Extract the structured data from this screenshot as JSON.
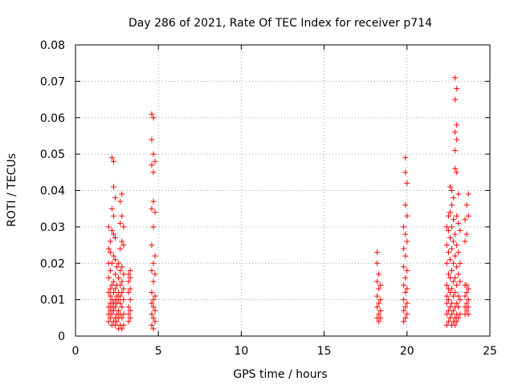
{
  "chart_data": {
    "type": "scatter",
    "title": "Day 286 of 2021, Rate Of TEC Index for receiver p714",
    "xlabel": "GPS time / hours",
    "ylabel": "ROTI / TECUs",
    "xlim": [
      0,
      25
    ],
    "ylim": [
      0,
      0.08
    ],
    "xticks": [
      0,
      5,
      10,
      15,
      20,
      25
    ],
    "xtick_labels": [
      "0",
      "5",
      "10",
      "15",
      "20",
      "25"
    ],
    "yticks": [
      0,
      0.01,
      0.02,
      0.03,
      0.04,
      0.05,
      0.06,
      0.07,
      0.08
    ],
    "ytick_labels": [
      "0",
      "0.01",
      "0.02",
      "0.03",
      "0.04",
      "0.05",
      "0.06",
      "0.07",
      "0.08"
    ],
    "grid": true,
    "marker": "+",
    "color": "#ff0000",
    "series": [
      {
        "name": "ROTI",
        "points": [
          [
            2.0,
            0.004
          ],
          [
            2.0,
            0.006
          ],
          [
            2.0,
            0.008
          ],
          [
            2.0,
            0.012
          ],
          [
            2.0,
            0.016
          ],
          [
            2.0,
            0.02
          ],
          [
            2.0,
            0.024
          ],
          [
            2.0,
            0.03
          ],
          [
            2.1,
            0.005
          ],
          [
            2.1,
            0.007
          ],
          [
            2.1,
            0.009
          ],
          [
            2.1,
            0.011
          ],
          [
            2.1,
            0.013
          ],
          [
            2.1,
            0.018
          ],
          [
            2.1,
            0.023
          ],
          [
            2.1,
            0.026
          ],
          [
            2.2,
            0.003
          ],
          [
            2.2,
            0.006
          ],
          [
            2.2,
            0.008
          ],
          [
            2.2,
            0.01
          ],
          [
            2.2,
            0.014
          ],
          [
            2.2,
            0.02
          ],
          [
            2.2,
            0.029
          ],
          [
            2.2,
            0.035
          ],
          [
            2.2,
            0.049
          ],
          [
            2.3,
            0.004
          ],
          [
            2.3,
            0.007
          ],
          [
            2.3,
            0.009
          ],
          [
            2.3,
            0.012
          ],
          [
            2.3,
            0.015
          ],
          [
            2.3,
            0.022
          ],
          [
            2.3,
            0.028
          ],
          [
            2.3,
            0.033
          ],
          [
            2.3,
            0.041
          ],
          [
            2.3,
            0.048
          ],
          [
            2.4,
            0.003
          ],
          [
            2.4,
            0.005
          ],
          [
            2.4,
            0.008
          ],
          [
            2.4,
            0.01
          ],
          [
            2.4,
            0.013
          ],
          [
            2.4,
            0.017
          ],
          [
            2.4,
            0.021
          ],
          [
            2.4,
            0.027
          ],
          [
            2.4,
            0.038
          ],
          [
            2.5,
            0.004
          ],
          [
            2.5,
            0.006
          ],
          [
            2.5,
            0.009
          ],
          [
            2.5,
            0.011
          ],
          [
            2.5,
            0.014
          ],
          [
            2.5,
            0.019
          ],
          [
            2.6,
            0.002
          ],
          [
            2.6,
            0.005
          ],
          [
            2.6,
            0.007
          ],
          [
            2.6,
            0.01
          ],
          [
            2.6,
            0.012
          ],
          [
            2.6,
            0.016
          ],
          [
            2.6,
            0.02
          ],
          [
            2.7,
            0.003
          ],
          [
            2.7,
            0.006
          ],
          [
            2.7,
            0.009
          ],
          [
            2.7,
            0.011
          ],
          [
            2.7,
            0.014
          ],
          [
            2.7,
            0.018
          ],
          [
            2.7,
            0.024
          ],
          [
            2.7,
            0.031
          ],
          [
            2.7,
            0.037
          ],
          [
            2.8,
            0.002
          ],
          [
            2.8,
            0.005
          ],
          [
            2.8,
            0.008
          ],
          [
            2.8,
            0.012
          ],
          [
            2.8,
            0.015
          ],
          [
            2.8,
            0.019
          ],
          [
            2.8,
            0.026
          ],
          [
            2.8,
            0.033
          ],
          [
            2.8,
            0.039
          ],
          [
            2.9,
            0.003
          ],
          [
            2.9,
            0.006
          ],
          [
            2.9,
            0.01
          ],
          [
            2.9,
            0.013
          ],
          [
            2.9,
            0.017
          ],
          [
            2.9,
            0.025
          ],
          [
            2.9,
            0.03
          ],
          [
            3.2,
            0.004
          ],
          [
            3.2,
            0.006
          ],
          [
            3.2,
            0.008
          ],
          [
            3.2,
            0.012
          ],
          [
            3.2,
            0.015
          ],
          [
            3.2,
            0.017
          ],
          [
            3.3,
            0.005
          ],
          [
            3.3,
            0.007
          ],
          [
            3.3,
            0.01
          ],
          [
            3.3,
            0.013
          ],
          [
            3.3,
            0.016
          ],
          [
            3.3,
            0.018
          ],
          [
            4.6,
            0.003
          ],
          [
            4.6,
            0.006
          ],
          [
            4.6,
            0.009
          ],
          [
            4.6,
            0.012
          ],
          [
            4.6,
            0.018
          ],
          [
            4.6,
            0.025
          ],
          [
            4.6,
            0.035
          ],
          [
            4.6,
            0.047
          ],
          [
            4.6,
            0.054
          ],
          [
            4.6,
            0.061
          ],
          [
            4.7,
            0.002
          ],
          [
            4.7,
            0.005
          ],
          [
            4.7,
            0.008
          ],
          [
            4.7,
            0.01
          ],
          [
            4.7,
            0.015
          ],
          [
            4.7,
            0.02
          ],
          [
            4.7,
            0.03
          ],
          [
            4.7,
            0.037
          ],
          [
            4.7,
            0.045
          ],
          [
            4.7,
            0.05
          ],
          [
            4.7,
            0.06
          ],
          [
            4.8,
            0.004
          ],
          [
            4.8,
            0.007
          ],
          [
            4.8,
            0.011
          ],
          [
            4.8,
            0.017
          ],
          [
            4.8,
            0.022
          ],
          [
            4.8,
            0.034
          ],
          [
            4.8,
            0.048
          ],
          [
            18.2,
            0.005
          ],
          [
            18.2,
            0.008
          ],
          [
            18.2,
            0.011
          ],
          [
            18.2,
            0.015
          ],
          [
            18.2,
            0.02
          ],
          [
            18.2,
            0.023
          ],
          [
            18.3,
            0.004
          ],
          [
            18.3,
            0.006
          ],
          [
            18.3,
            0.009
          ],
          [
            18.3,
            0.013
          ],
          [
            18.3,
            0.017
          ],
          [
            18.4,
            0.005
          ],
          [
            18.4,
            0.007
          ],
          [
            18.4,
            0.01
          ],
          [
            18.4,
            0.014
          ],
          [
            19.8,
            0.004
          ],
          [
            19.8,
            0.007
          ],
          [
            19.8,
            0.01
          ],
          [
            19.8,
            0.014
          ],
          [
            19.8,
            0.019
          ],
          [
            19.8,
            0.024
          ],
          [
            19.8,
            0.03
          ],
          [
            19.9,
            0.005
          ],
          [
            19.9,
            0.008
          ],
          [
            19.9,
            0.012
          ],
          [
            19.9,
            0.016
          ],
          [
            19.9,
            0.022
          ],
          [
            19.9,
            0.028
          ],
          [
            19.9,
            0.036
          ],
          [
            19.9,
            0.045
          ],
          [
            19.9,
            0.049
          ],
          [
            20.0,
            0.006
          ],
          [
            20.0,
            0.009
          ],
          [
            20.0,
            0.013
          ],
          [
            20.0,
            0.018
          ],
          [
            20.0,
            0.026
          ],
          [
            20.0,
            0.033
          ],
          [
            20.0,
            0.042
          ],
          [
            22.4,
            0.003
          ],
          [
            22.4,
            0.006
          ],
          [
            22.4,
            0.009
          ],
          [
            22.4,
            0.011
          ],
          [
            22.4,
            0.014
          ],
          [
            22.4,
            0.02
          ],
          [
            22.4,
            0.025
          ],
          [
            22.4,
            0.03
          ],
          [
            22.5,
            0.004
          ],
          [
            22.5,
            0.007
          ],
          [
            22.5,
            0.01
          ],
          [
            22.5,
            0.013
          ],
          [
            22.5,
            0.017
          ],
          [
            22.5,
            0.023
          ],
          [
            22.5,
            0.029
          ],
          [
            22.5,
            0.033
          ],
          [
            22.6,
            0.005
          ],
          [
            22.6,
            0.008
          ],
          [
            22.6,
            0.012
          ],
          [
            22.6,
            0.016
          ],
          [
            22.6,
            0.021
          ],
          [
            22.6,
            0.027
          ],
          [
            22.6,
            0.034
          ],
          [
            22.6,
            0.041
          ],
          [
            22.7,
            0.003
          ],
          [
            22.7,
            0.006
          ],
          [
            22.7,
            0.009
          ],
          [
            22.7,
            0.013
          ],
          [
            22.7,
            0.018
          ],
          [
            22.7,
            0.024
          ],
          [
            22.7,
            0.03
          ],
          [
            22.7,
            0.036
          ],
          [
            22.7,
            0.04
          ],
          [
            22.8,
            0.004
          ],
          [
            22.8,
            0.007
          ],
          [
            22.8,
            0.011
          ],
          [
            22.8,
            0.015
          ],
          [
            22.8,
            0.02
          ],
          [
            22.8,
            0.026
          ],
          [
            22.8,
            0.032
          ],
          [
            22.8,
            0.038
          ],
          [
            22.9,
            0.003
          ],
          [
            22.9,
            0.005
          ],
          [
            22.9,
            0.008
          ],
          [
            22.9,
            0.012
          ],
          [
            22.9,
            0.016
          ],
          [
            22.9,
            0.022
          ],
          [
            22.9,
            0.028
          ],
          [
            22.9,
            0.046
          ],
          [
            22.9,
            0.051
          ],
          [
            22.9,
            0.056
          ],
          [
            22.9,
            0.065
          ],
          [
            22.9,
            0.071
          ],
          [
            23.0,
            0.004
          ],
          [
            23.0,
            0.006
          ],
          [
            23.0,
            0.009
          ],
          [
            23.0,
            0.014
          ],
          [
            23.0,
            0.019
          ],
          [
            23.0,
            0.025
          ],
          [
            23.0,
            0.033
          ],
          [
            23.0,
            0.045
          ],
          [
            23.0,
            0.054
          ],
          [
            23.0,
            0.058
          ],
          [
            23.0,
            0.068
          ],
          [
            23.1,
            0.005
          ],
          [
            23.1,
            0.008
          ],
          [
            23.1,
            0.011
          ],
          [
            23.1,
            0.017
          ],
          [
            23.1,
            0.023
          ],
          [
            23.1,
            0.031
          ],
          [
            23.1,
            0.039
          ],
          [
            23.2,
            0.006
          ],
          [
            23.2,
            0.01
          ],
          [
            23.2,
            0.015
          ],
          [
            23.2,
            0.02
          ],
          [
            23.2,
            0.029
          ],
          [
            23.5,
            0.006
          ],
          [
            23.5,
            0.008
          ],
          [
            23.5,
            0.011
          ],
          [
            23.5,
            0.014
          ],
          [
            23.5,
            0.026
          ],
          [
            23.5,
            0.032
          ],
          [
            23.6,
            0.007
          ],
          [
            23.6,
            0.009
          ],
          [
            23.6,
            0.012
          ],
          [
            23.6,
            0.014
          ],
          [
            23.6,
            0.028
          ],
          [
            23.6,
            0.036
          ],
          [
            23.7,
            0.006
          ],
          [
            23.7,
            0.008
          ],
          [
            23.7,
            0.01
          ],
          [
            23.7,
            0.013
          ],
          [
            23.7,
            0.033
          ],
          [
            23.7,
            0.039
          ]
        ]
      }
    ]
  }
}
